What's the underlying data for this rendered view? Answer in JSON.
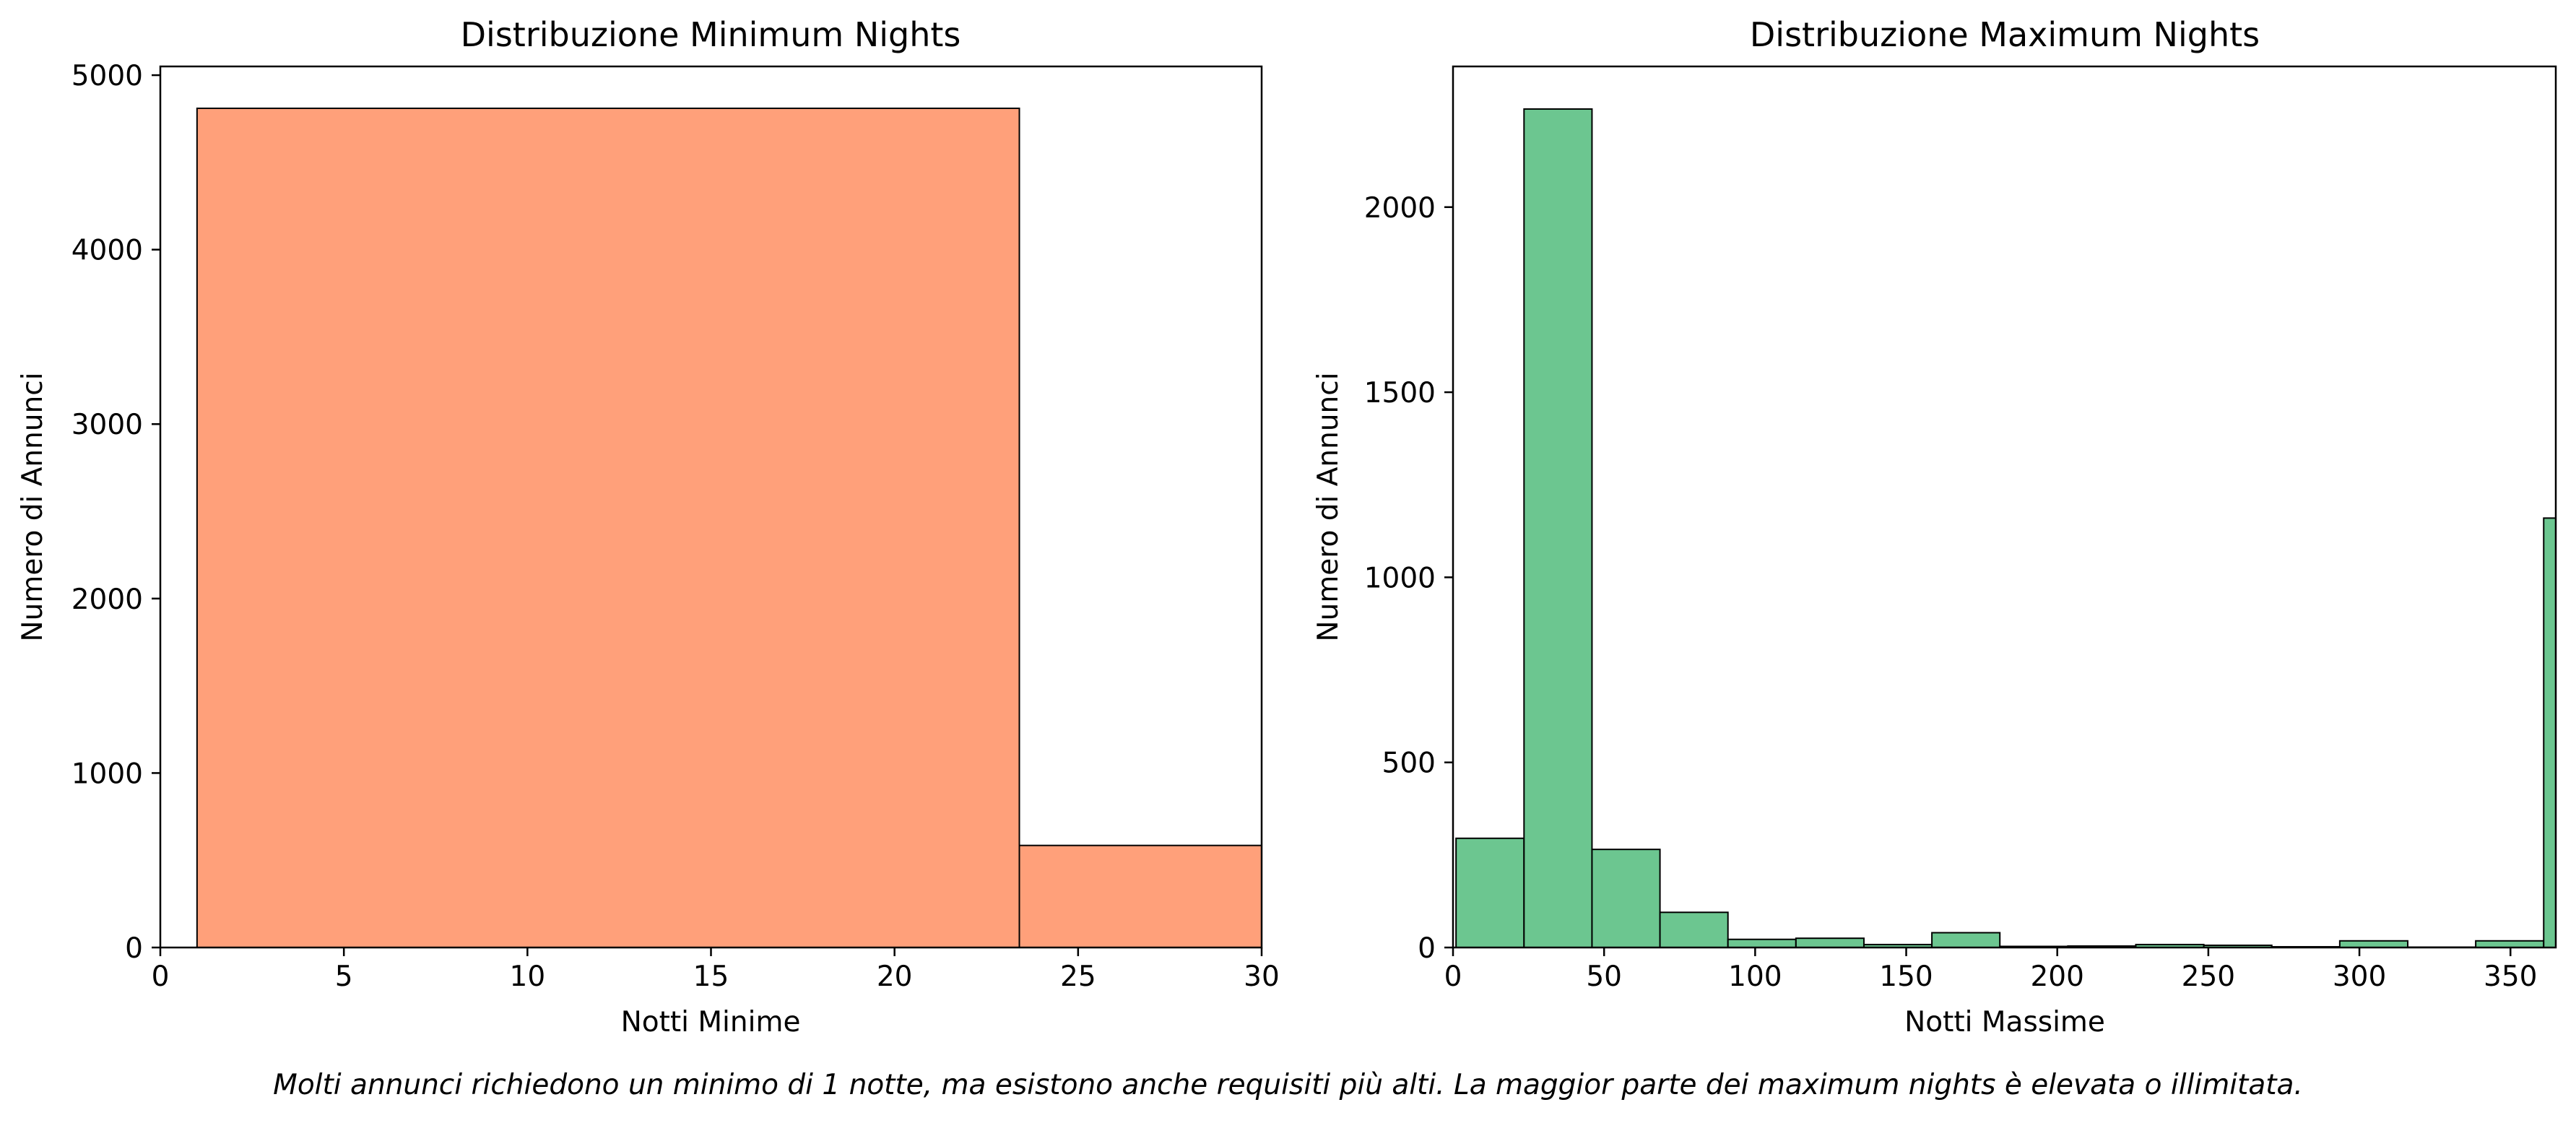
{
  "chart_data": [
    {
      "type": "bar",
      "title": "Distribuzione Minimum Nights",
      "xlabel": "Notti Minime",
      "ylabel": "Numero di Annunci",
      "xlim": [
        0,
        30
      ],
      "ylim": [
        0,
        5050
      ],
      "xticks": [
        0,
        5,
        10,
        15,
        20,
        25,
        30
      ],
      "yticks": [
        0,
        1000,
        2000,
        3000,
        4000,
        5000
      ],
      "bins": [
        {
          "x0": 1,
          "x1": 23.4,
          "value": 4810
        },
        {
          "x0": 23.4,
          "x1": 30,
          "value": 585
        }
      ],
      "color": "#ffa07a",
      "edge_color": "#000000",
      "grid": false
    },
    {
      "type": "bar",
      "title": "Distribuzione Maximum Nights",
      "xlabel": "Notti Massime",
      "ylabel": "Numero di Annunci",
      "xlim": [
        0,
        365
      ],
      "ylim": [
        0,
        2380
      ],
      "xticks": [
        0,
        50,
        100,
        150,
        200,
        250,
        300,
        350
      ],
      "yticks": [
        0,
        500,
        1000,
        1500,
        2000
      ],
      "bins": [
        {
          "x0": 1,
          "x1": 23.5,
          "value": 295
        },
        {
          "x0": 23.5,
          "x1": 46,
          "value": 2265
        },
        {
          "x0": 46,
          "x1": 68.5,
          "value": 265
        },
        {
          "x0": 68.5,
          "x1": 91,
          "value": 95
        },
        {
          "x0": 91,
          "x1": 113.5,
          "value": 22
        },
        {
          "x0": 113.5,
          "x1": 136,
          "value": 25
        },
        {
          "x0": 136,
          "x1": 158.5,
          "value": 8
        },
        {
          "x0": 158.5,
          "x1": 181,
          "value": 40
        },
        {
          "x0": 181,
          "x1": 203.5,
          "value": 3
        },
        {
          "x0": 203.5,
          "x1": 226,
          "value": 4
        },
        {
          "x0": 226,
          "x1": 248.5,
          "value": 8
        },
        {
          "x0": 248.5,
          "x1": 271,
          "value": 6
        },
        {
          "x0": 271,
          "x1": 293.5,
          "value": 2
        },
        {
          "x0": 293.5,
          "x1": 316,
          "value": 18
        },
        {
          "x0": 316,
          "x1": 338.5,
          "value": 1
        },
        {
          "x0": 338.5,
          "x1": 361,
          "value": 18
        },
        {
          "x0": 361,
          "x1": 365,
          "value": 1160
        }
      ],
      "color": "#6cc690",
      "edge_color": "#000000",
      "grid": false
    }
  ],
  "caption": "Molti annunci richiedono un minimo di 1 notte, ma esistono anche requisiti più alti. La maggior parte dei maximum nights è elevata o illimitata."
}
